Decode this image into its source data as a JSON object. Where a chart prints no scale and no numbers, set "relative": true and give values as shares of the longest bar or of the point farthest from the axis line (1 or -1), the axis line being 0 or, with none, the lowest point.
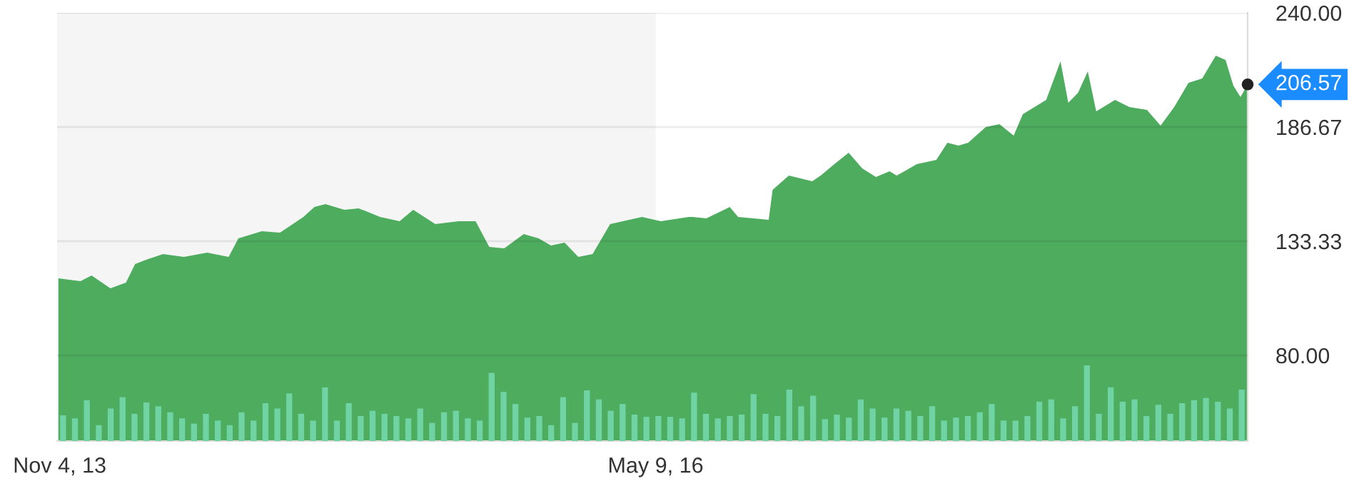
{
  "chart_data": [
    {
      "type": "area",
      "x": [
        "2013-11-02",
        "2013-12-06",
        "2013-12-23",
        "2014-01-21",
        "2014-02-14",
        "2014-02-28",
        "2014-03-17",
        "2014-04-12",
        "2014-05-14",
        "2014-06-19",
        "2014-07-22",
        "2014-08-06",
        "2014-09-11",
        "2014-10-09",
        "2014-11-14",
        "2014-12-01",
        "2014-12-18",
        "2015-01-16",
        "2015-02-07",
        "2015-03-12",
        "2015-04-11",
        "2015-05-02",
        "2015-06-05",
        "2015-07-11",
        "2015-08-06",
        "2015-08-27",
        "2015-09-19",
        "2015-10-19",
        "2015-11-11",
        "2015-11-30",
        "2015-12-21",
        "2016-01-11",
        "2016-02-02",
        "2016-02-29",
        "2016-04-18",
        "2016-05-17",
        "2016-06-29",
        "2016-07-05",
        "2016-07-26",
        "2016-08-31",
        "2016-09-13",
        "2016-10-30",
        "2016-11-05",
        "2016-11-30",
        "2017-01-05",
        "2017-01-18",
        "2017-02-08",
        "2017-03-02",
        "2017-03-23",
        "2017-04-13",
        "2017-05-04",
        "2017-05-15",
        "2017-06-15",
        "2017-07-15",
        "2017-08-01",
        "2017-08-18",
        "2017-09-02",
        "2017-09-29",
        "2017-10-20",
        "2017-11-11",
        "2017-11-25",
        "2017-12-31",
        "2018-01-22",
        "2018-02-03",
        "2018-02-18",
        "2018-03-05",
        "2018-03-18",
        "2018-04-16",
        "2018-05-08",
        "2018-06-04",
        "2018-06-25",
        "2018-07-16",
        "2018-08-07",
        "2018-08-28",
        "2018-09-18",
        "2018-10-03",
        "2018-10-15",
        "2018-10-26",
        "2018-11-06"
      ],
      "values": [
        116,
        114.7,
        117.3,
        111.3,
        114,
        122.7,
        124.7,
        127.3,
        126,
        128,
        126,
        134.7,
        138,
        137.3,
        144.7,
        149.3,
        150.7,
        148,
        148.7,
        144.7,
        142.7,
        148,
        141.3,
        142.7,
        142.7,
        130.7,
        130,
        136.7,
        134.7,
        131.3,
        132.7,
        126,
        127.3,
        141.3,
        144.7,
        142.7,
        144.7,
        144.7,
        144,
        149.3,
        144.7,
        143.3,
        157.3,
        164,
        161.3,
        164,
        169.3,
        174.7,
        167.3,
        163.3,
        166,
        164,
        169.3,
        171.3,
        179.3,
        178,
        179.3,
        186.7,
        188,
        182.7,
        192.7,
        199.3,
        217.3,
        198,
        202.7,
        212.7,
        194,
        199.3,
        196,
        194.7,
        187.3,
        196,
        207.3,
        209.3,
        220,
        218,
        206,
        200.7,
        206.57
      ],
      "color": "#4eac5e",
      "xlim": [
        "2013-10-31",
        "2018-11-06"
      ],
      "xticks": [
        {
          "value": "2013-11-04",
          "label": "Nov 4, 13"
        },
        {
          "value": "2016-05-09",
          "label": "May 9, 16"
        }
      ],
      "ylim": [
        40,
        240
      ],
      "yticks": [
        {
          "value": 80,
          "label": "80.00"
        },
        {
          "value": 133.33,
          "label": "133.33"
        },
        {
          "value": 186.67,
          "label": "186.67"
        },
        {
          "value": 240,
          "label": "240.00"
        }
      ],
      "grid": "y",
      "bands": [
        {
          "axis": "x",
          "from": "2013-10-31",
          "to": "2016-05-09",
          "color": "#f5f5f5"
        }
      ],
      "annotations": [
        {
          "text": "206.57",
          "x": "2018-11-06",
          "y": 206.57
        }
      ]
    },
    {
      "type": "bar",
      "relative": true,
      "color": "#6fd3a3",
      "categories": [
        null,
        null,
        null,
        null,
        null,
        null,
        null,
        null,
        null,
        null,
        null,
        null,
        null,
        null,
        null,
        null,
        null,
        null,
        null,
        null,
        null,
        null,
        null,
        null,
        null,
        null,
        null,
        null,
        null,
        null,
        null,
        null,
        null,
        null,
        null,
        null,
        null,
        null,
        null,
        null,
        null,
        null,
        null,
        null,
        null,
        null,
        null,
        null,
        null,
        null,
        null,
        null,
        null,
        null,
        null,
        null,
        null,
        null,
        null,
        null,
        null,
        null,
        null,
        null,
        null,
        null,
        null,
        null,
        null,
        null,
        null,
        null,
        null,
        null,
        null,
        null,
        null,
        null,
        null,
        null,
        null,
        null,
        null,
        null,
        null,
        null,
        null,
        null,
        null,
        null,
        null,
        null,
        null,
        null,
        null,
        null,
        null,
        null,
        null,
        null
      ],
      "values": [
        0.34,
        0.3,
        0.54,
        0.21,
        0.43,
        0.58,
        0.36,
        0.51,
        0.46,
        0.38,
        0.3,
        0.23,
        0.36,
        0.27,
        0.21,
        0.38,
        0.27,
        0.5,
        0.43,
        0.63,
        0.36,
        0.27,
        0.71,
        0.27,
        0.5,
        0.33,
        0.4,
        0.36,
        0.33,
        0.3,
        0.43,
        0.24,
        0.38,
        0.4,
        0.3,
        0.27,
        0.9,
        0.65,
        0.49,
        0.31,
        0.33,
        0.21,
        0.58,
        0.24,
        0.67,
        0.55,
        0.4,
        0.49,
        0.35,
        0.32,
        0.33,
        0.32,
        0.3,
        0.64,
        0.36,
        0.3,
        0.33,
        0.35,
        0.62,
        0.36,
        0.33,
        0.68,
        0.46,
        0.6,
        0.29,
        0.35,
        0.31,
        0.55,
        0.43,
        0.31,
        0.43,
        0.4,
        0.33,
        0.46,
        0.27,
        0.31,
        0.33,
        0.38,
        0.49,
        0.27,
        0.27,
        0.33,
        0.52,
        0.55,
        0.3,
        0.46,
        1.0,
        0.36,
        0.71,
        0.52,
        0.55,
        0.33,
        0.48,
        0.36,
        0.5,
        0.54,
        0.57,
        0.52,
        0.43,
        0.68
      ]
    }
  ]
}
